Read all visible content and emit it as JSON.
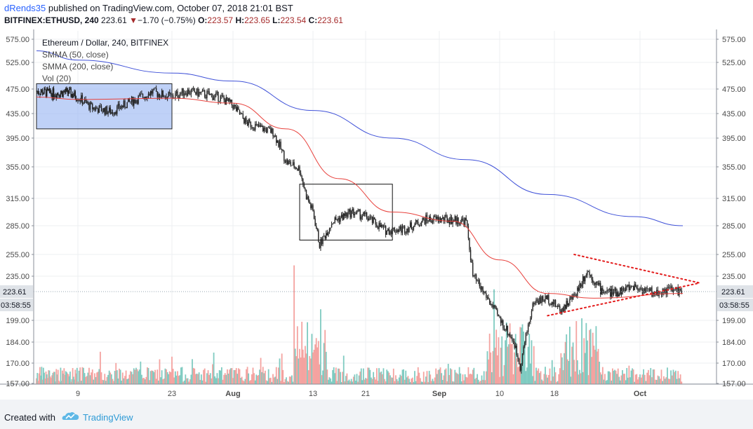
{
  "header": {
    "author": "dRends35",
    "published": "published on TradingView.com, October 07, 2018 21:01 BST",
    "symbol": "BITFINEX:ETHUSD, 240",
    "price": "223.61",
    "change_arrow": "▼",
    "change": "−1.70 (−0.75%)",
    "o_label": "O:",
    "o_value": "223.57",
    "h_label": "H:",
    "h_value": "223.65",
    "l_label": "L:",
    "l_value": "223.54",
    "c_label": "C:",
    "c_value": "223.61"
  },
  "legend": {
    "title": "Ethereum / Dollar, 240, BITFINEX",
    "smma50": "SMMA (50, close)",
    "smma200": "SMMA (200, close)",
    "vol": "Vol (20)"
  },
  "footer": {
    "created": "Created with",
    "brand": "TradingView"
  },
  "colors": {
    "smma50": "#e8413c",
    "smma200": "#3f51d8",
    "up_vol": "#7fcbc1",
    "down_vol": "#f4a3a0",
    "box_fill": "#9db9f2",
    "triangle": "#e31b1b",
    "candle": "#222222"
  },
  "chart_data": {
    "type": "candlestick",
    "title": "Ethereum / Dollar, 240, BITFINEX",
    "price_axis": {
      "ticks": [
        "575.00",
        "525.00",
        "475.00",
        "435.00",
        "395.00",
        "355.00",
        "315.00",
        "285.00",
        "255.00",
        "235.00",
        "199.00",
        "184.00",
        "170.00",
        "157.00"
      ],
      "current_price": "223.61",
      "countdown": "03:58:55"
    },
    "x_axis": {
      "ticks": [
        "9",
        "23",
        "Aug",
        "13",
        "21",
        "Sep",
        "10",
        "18",
        "Oct"
      ]
    },
    "price_path": [
      [
        "2018-07-01",
        472
      ],
      [
        "2018-07-04",
        468
      ],
      [
        "2018-07-07",
        470
      ],
      [
        "2018-07-09",
        462
      ],
      [
        "2018-07-11",
        445
      ],
      [
        "2018-07-14",
        438
      ],
      [
        "2018-07-17",
        455
      ],
      [
        "2018-07-20",
        470
      ],
      [
        "2018-07-23",
        462
      ],
      [
        "2018-07-25",
        472
      ],
      [
        "2018-07-28",
        466
      ],
      [
        "2018-07-30",
        462
      ],
      [
        "2018-08-01",
        448
      ],
      [
        "2018-08-03",
        420
      ],
      [
        "2018-08-05",
        412
      ],
      [
        "2018-08-07",
        405
      ],
      [
        "2018-08-09",
        362
      ],
      [
        "2018-08-11",
        352
      ],
      [
        "2018-08-12",
        318
      ],
      [
        "2018-08-13",
        300
      ],
      [
        "2018-08-14",
        265
      ],
      [
        "2018-08-16",
        290
      ],
      [
        "2018-08-19",
        300
      ],
      [
        "2018-08-21",
        295
      ],
      [
        "2018-08-24",
        280
      ],
      [
        "2018-08-27",
        282
      ],
      [
        "2018-08-30",
        292
      ],
      [
        "2018-09-02",
        292
      ],
      [
        "2018-09-05",
        290
      ],
      [
        "2018-09-06",
        235
      ],
      [
        "2018-09-08",
        220
      ],
      [
        "2018-09-10",
        200
      ],
      [
        "2018-09-12",
        185
      ],
      [
        "2018-09-13",
        168
      ],
      [
        "2018-09-15",
        215
      ],
      [
        "2018-09-17",
        218
      ],
      [
        "2018-09-19",
        208
      ],
      [
        "2018-09-21",
        220
      ],
      [
        "2018-09-23",
        240
      ],
      [
        "2018-09-25",
        225
      ],
      [
        "2018-09-27",
        222
      ],
      [
        "2018-09-30",
        228
      ],
      [
        "2018-10-03",
        222
      ],
      [
        "2018-10-05",
        225
      ],
      [
        "2018-10-07",
        223.61
      ]
    ],
    "smma50": [
      [
        "2018-07-01",
        462
      ],
      [
        "2018-07-09",
        458
      ],
      [
        "2018-07-23",
        460
      ],
      [
        "2018-08-01",
        452
      ],
      [
        "2018-08-09",
        410
      ],
      [
        "2018-08-17",
        340
      ],
      [
        "2018-08-25",
        300
      ],
      [
        "2018-09-03",
        290
      ],
      [
        "2018-09-10",
        250
      ],
      [
        "2018-09-17",
        222
      ],
      [
        "2018-09-24",
        218
      ],
      [
        "2018-10-07",
        222
      ]
    ],
    "smma200": [
      [
        "2018-07-01",
        550
      ],
      [
        "2018-07-09",
        530
      ],
      [
        "2018-07-23",
        505
      ],
      [
        "2018-08-01",
        490
      ],
      [
        "2018-08-13",
        440
      ],
      [
        "2018-08-25",
        395
      ],
      [
        "2018-09-05",
        365
      ],
      [
        "2018-09-17",
        320
      ],
      [
        "2018-09-30",
        295
      ],
      [
        "2018-10-07",
        285
      ]
    ],
    "annotations": [
      {
        "type": "rectangle",
        "style": "filled-blue",
        "from": [
          "2018-07-01",
          485
        ],
        "to": [
          "2018-07-23",
          410
        ]
      },
      {
        "type": "rectangle",
        "style": "outline",
        "from": [
          "2018-08-11",
          333
        ],
        "to": [
          "2018-08-25",
          270
        ]
      },
      {
        "type": "triangle",
        "style": "dotted-red",
        "points": [
          [
            "2018-09-21",
            255
          ],
          [
            "2018-10-08",
            230
          ],
          [
            "2018-09-17",
            203
          ]
        ]
      }
    ]
  }
}
